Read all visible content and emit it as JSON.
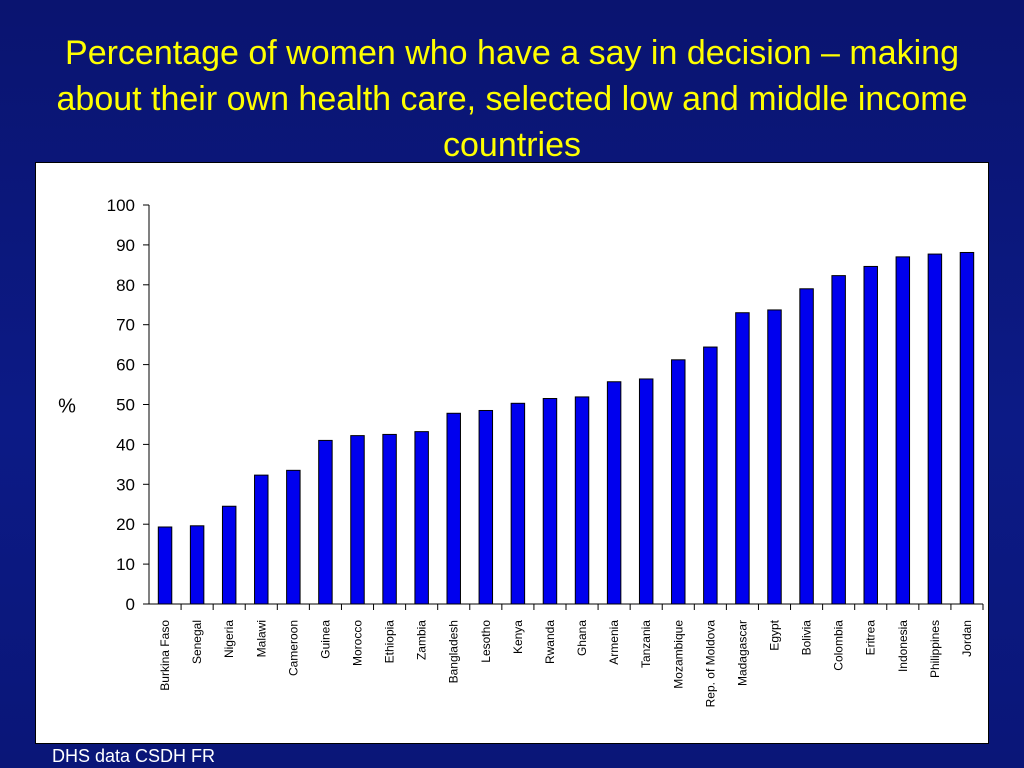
{
  "slide": {
    "title": "Percentage of women who have a say in decision – making about their own health care, selected low and middle income countries",
    "footer": "DHS data CSDH FR"
  },
  "colors": {
    "bar_fill": "#0000ee",
    "background": "#0c1a86",
    "title": "#ffff00"
  },
  "chart_data": {
    "type": "bar",
    "title": "",
    "xlabel": "",
    "ylabel": "%",
    "ylim": [
      0,
      100
    ],
    "yticks": [
      0,
      10,
      20,
      30,
      40,
      50,
      60,
      70,
      80,
      90,
      100
    ],
    "grid": false,
    "legend": "none",
    "categories": [
      "Burkina Faso",
      "Senegal",
      "Nigeria",
      "Malawi",
      "Cameroon",
      "Guinea",
      "Morocco",
      "Ethiopia",
      "Zambia",
      "Bangladesh",
      "Lesotho",
      "Kenya",
      "Rwanda",
      "Ghana",
      "Armenia",
      "Tanzania",
      "Mozambique",
      "Rep. of Moldova",
      "Madagascar",
      "Egypt",
      "Bolivia",
      "Colombia",
      "Eritrea",
      "Indonesia",
      "Philippines",
      "Jordan"
    ],
    "values": [
      19.3,
      19.6,
      24.5,
      32.3,
      33.5,
      41.0,
      42.2,
      42.5,
      43.2,
      47.8,
      48.5,
      50.3,
      51.5,
      51.9,
      55.7,
      56.4,
      61.2,
      64.4,
      73.0,
      73.7,
      79.0,
      82.3,
      84.6,
      87.0,
      87.7,
      88.1
    ]
  }
}
